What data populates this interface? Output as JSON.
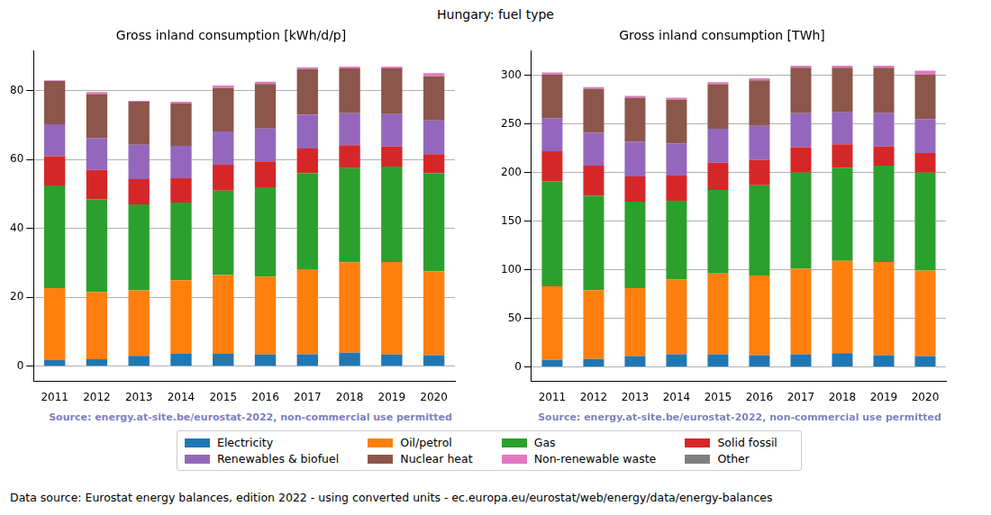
{
  "title": "Hungary: fuel type",
  "footer": "Data source: Eurostat energy balances, edition 2022 - using converted units - ec.europa.eu/eurostat/web/energy/data/energy-balances",
  "legend": "bottom",
  "chart_data": [
    {
      "type": "bar",
      "stacked": true,
      "grid": true,
      "title": "Gross inland consumption [kWh/d/p]",
      "annotations": [
        "Source: energy.at-site.be/eurostat-2022, non-commercial use permitted"
      ],
      "categories": [
        "2011",
        "2012",
        "2013",
        "2014",
        "2015",
        "2016",
        "2017",
        "2018",
        "2019",
        "2020"
      ],
      "ylim": [
        -4.4,
        91.5
      ],
      "yticks": [
        0,
        20,
        40,
        60,
        80
      ],
      "series": [
        {
          "name": "Electricity",
          "color": "#1f77b4",
          "values": [
            1.8,
            2.0,
            3.0,
            3.6,
            3.6,
            3.4,
            3.5,
            3.9,
            3.4,
            3.2
          ]
        },
        {
          "name": "Oil/petrol",
          "color": "#ff7f0e",
          "values": [
            20.9,
            19.5,
            19.0,
            21.4,
            22.9,
            22.6,
            24.7,
            26.3,
            26.9,
            24.4
          ]
        },
        {
          "name": "Gas",
          "color": "#2ca02c",
          "values": [
            29.8,
            27.0,
            25.0,
            22.5,
            24.5,
            26.0,
            27.8,
            27.3,
            27.7,
            28.4
          ]
        },
        {
          "name": "Solid fossil",
          "color": "#d62728",
          "values": [
            8.5,
            8.5,
            7.3,
            7.1,
            7.5,
            7.5,
            7.2,
            6.7,
            5.8,
            5.6
          ]
        },
        {
          "name": "Renewables & biofuel",
          "color": "#9467bd",
          "values": [
            9.3,
            9.3,
            10.0,
            9.4,
            9.7,
            9.5,
            9.8,
            9.3,
            9.4,
            9.8
          ]
        },
        {
          "name": "Nuclear heat",
          "color": "#8c564b",
          "values": [
            12.5,
            12.7,
            12.5,
            12.3,
            12.6,
            13.0,
            13.3,
            13.0,
            13.3,
            12.8
          ]
        },
        {
          "name": "Non-renewable waste",
          "color": "#e377c2",
          "values": [
            0.2,
            0.6,
            0.3,
            0.5,
            0.7,
            0.6,
            0.5,
            0.5,
            0.5,
            0.9
          ]
        },
        {
          "name": "Other",
          "color": "#7f7f7f",
          "values": [
            0,
            0,
            0,
            0,
            0,
            0,
            0,
            0,
            0,
            0
          ]
        }
      ]
    },
    {
      "type": "bar",
      "stacked": true,
      "grid": true,
      "title": "Gross inland consumption [TWh]",
      "annotations": [
        "Source: energy.at-site.be/eurostat-2022, non-commercial use permitted"
      ],
      "categories": [
        "2011",
        "2012",
        "2013",
        "2014",
        "2015",
        "2016",
        "2017",
        "2018",
        "2019",
        "2020"
      ],
      "ylim": [
        -15,
        325
      ],
      "yticks": [
        0,
        50,
        100,
        150,
        200,
        250,
        300
      ],
      "series": [
        {
          "name": "Electricity",
          "color": "#1f77b4",
          "values": [
            7,
            8,
            11,
            13,
            13,
            12,
            13,
            14,
            12,
            11
          ]
        },
        {
          "name": "Oil/petrol",
          "color": "#ff7f0e",
          "values": [
            76,
            71,
            70,
            77,
            83,
            82,
            88,
            95,
            96,
            88
          ]
        },
        {
          "name": "Gas",
          "color": "#2ca02c",
          "values": [
            108,
            97,
            89,
            81,
            86,
            93,
            99,
            96,
            99,
            101
          ]
        },
        {
          "name": "Solid fossil",
          "color": "#d62728",
          "values": [
            31,
            31,
            26,
            26,
            28,
            26,
            26,
            24,
            20,
            20
          ]
        },
        {
          "name": "Renewables & biofuel",
          "color": "#9467bd",
          "values": [
            34,
            34,
            36,
            33,
            35,
            35,
            35,
            33,
            34,
            35
          ]
        },
        {
          "name": "Nuclear heat",
          "color": "#8c564b",
          "values": [
            45,
            45,
            45,
            45,
            46,
            47,
            47,
            46,
            47,
            46
          ]
        },
        {
          "name": "Non-renewable waste",
          "color": "#e377c2",
          "values": [
            2,
            2,
            2,
            2,
            2,
            2,
            2,
            2,
            2,
            4
          ]
        },
        {
          "name": "Other",
          "color": "#7f7f7f",
          "values": [
            0,
            0,
            0,
            0,
            0,
            0,
            0,
            0,
            0,
            0
          ]
        }
      ]
    }
  ]
}
